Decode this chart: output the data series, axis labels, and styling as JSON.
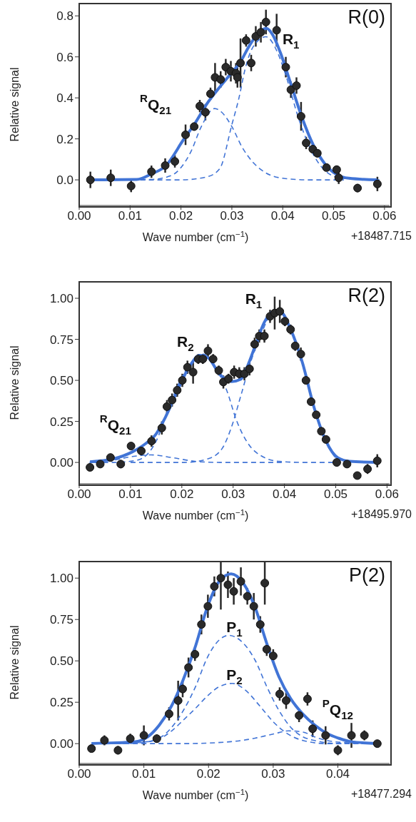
{
  "chart_data": [
    {
      "type": "scatter",
      "xlabel": "Wave number (cm$^{−1}$)",
      "ylabel": "Relative signal",
      "xlim": [
        0,
        0.061
      ],
      "ylim": [
        -0.125,
        0.86
      ],
      "xticks": [
        {
          "value": 0,
          "label": "0.00"
        },
        {
          "value": 0.01,
          "label": "0.01"
        },
        {
          "value": 0.02,
          "label": "0.02"
        },
        {
          "value": 0.03,
          "label": "0.03"
        },
        {
          "value": 0.04,
          "label": "0.04"
        },
        {
          "value": 0.05,
          "label": "0.05"
        },
        {
          "value": 0.06,
          "label": "0.06"
        }
      ],
      "yticks": [
        {
          "value": 0,
          "label": "0.0"
        },
        {
          "value": 0.2,
          "label": "0.2"
        },
        {
          "value": 0.4,
          "label": "0.4"
        },
        {
          "value": 0.6,
          "label": "0.6"
        },
        {
          "value": 0.8,
          "label": "0.8"
        }
      ],
      "annotations": [
        "R(0)",
        "+18487.715",
        "R$_{1}$",
        "$^{R}$Q$_{21}$"
      ],
      "series": [
        {
          "marker": "circle",
          "color": "#2a2a2a",
          "x": [
            0.0022,
            0.0062,
            0.0102,
            0.0142,
            0.0169,
            0.0188,
            0.0209,
            0.0226,
            0.0237,
            0.0248,
            0.0258,
            0.0267,
            0.0278,
            0.0288,
            0.0298,
            0.0308,
            0.0311,
            0.0317,
            0.0328,
            0.0338,
            0.0347,
            0.0357,
            0.0367,
            0.0388,
            0.0406,
            0.0416,
            0.0427,
            0.0436,
            0.0446,
            0.0459,
            0.0468,
            0.0486,
            0.0506,
            0.051,
            0.0547,
            0.0586
          ],
          "values": [
            0.0,
            0.01,
            -0.03,
            0.04,
            0.07,
            0.09,
            0.22,
            0.26,
            0.36,
            0.33,
            0.42,
            0.5,
            0.49,
            0.55,
            0.53,
            0.52,
            0.5,
            0.57,
            0.68,
            0.57,
            0.7,
            0.72,
            0.77,
            0.73,
            0.55,
            0.44,
            0.46,
            0.31,
            0.18,
            0.15,
            0.13,
            0.06,
            0.05,
            0.01,
            -0.04,
            -0.02
          ],
          "errors": [
            0.04,
            0.04,
            0.03,
            0.03,
            0.035,
            0.03,
            0.05,
            0.02,
            0.03,
            0.04,
            0.03,
            0.07,
            0.04,
            0.04,
            0.05,
            0.05,
            0.05,
            0.12,
            0.03,
            0.04,
            0.05,
            0.05,
            0.06,
            0.08,
            0.05,
            0.04,
            0.04,
            0.07,
            0.03,
            0.02,
            0.02,
            0.015,
            0.02,
            0.03,
            0.02,
            0.035
          ]
        },
        {
          "type": "line",
          "line_style": "solid",
          "color": "#4174d6",
          "x": [
            0.002,
            0.0113,
            0.0142,
            0.0169,
            0.0206,
            0.0226,
            0.0252,
            0.0275,
            0.0298,
            0.0317,
            0.0335,
            0.0358,
            0.0368,
            0.0381,
            0.0395,
            0.0414,
            0.0437,
            0.046,
            0.0483,
            0.0506,
            0.053,
            0.0585
          ],
          "values": [
            0,
            0.002,
            0.029,
            0.066,
            0.2,
            0.27,
            0.375,
            0.449,
            0.518,
            0.576,
            0.657,
            0.729,
            0.739,
            0.704,
            0.623,
            0.483,
            0.31,
            0.17,
            0.078,
            0.026,
            0.008,
            0
          ]
        },
        {
          "type": "line",
          "line_style": "dashed",
          "color": "#4174d6",
          "x": [
            0.002,
            0.014,
            0.018,
            0.02,
            0.022,
            0.024,
            0.0266,
            0.028,
            0.03,
            0.032,
            0.034,
            0.036,
            0.04,
            0.045,
            0.052
          ],
          "values": [
            0,
            0.002,
            0.02,
            0.06,
            0.14,
            0.26,
            0.348,
            0.33,
            0.26,
            0.16,
            0.09,
            0.045,
            0.008,
            0,
            0
          ]
        },
        {
          "type": "line",
          "line_style": "dashed",
          "color": "#4174d6",
          "x": [
            0.012,
            0.02,
            0.025,
            0.0276,
            0.03,
            0.0314,
            0.0326,
            0.0342,
            0.0367,
            0.039,
            0.0405,
            0.0433,
            0.046,
            0.0484,
            0.0516,
            0.059
          ],
          "values": [
            0,
            0,
            0.014,
            0.054,
            0.269,
            0.4,
            0.54,
            0.65,
            0.698,
            0.62,
            0.518,
            0.286,
            0.124,
            0.043,
            0.008,
            0
          ]
        }
      ]
    },
    {
      "type": "scatter",
      "xlabel": "Wave number (cm$^{−1}$)",
      "ylabel": "Relative signal",
      "xlim": [
        0,
        0.0605
      ],
      "ylim": [
        -0.13,
        1.1
      ],
      "xticks": [
        {
          "value": 0,
          "label": "0.00"
        },
        {
          "value": 0.01,
          "label": "0.01"
        },
        {
          "value": 0.02,
          "label": "0.02"
        },
        {
          "value": 0.03,
          "label": "0.03"
        },
        {
          "value": 0.04,
          "label": "0.04"
        },
        {
          "value": 0.05,
          "label": "0.05"
        },
        {
          "value": 0.06,
          "label": "0.06"
        }
      ],
      "yticks": [
        {
          "value": 0,
          "label": "0.00"
        },
        {
          "value": 0.25,
          "label": "0.25"
        },
        {
          "value": 0.5,
          "label": "0.50"
        },
        {
          "value": 0.75,
          "label": "0.75"
        },
        {
          "value": 1,
          "label": "1.00"
        }
      ],
      "annotations": [
        "R(2)",
        "+18495.970",
        "R$_{1}$",
        "R$_{2}$",
        "$^{R}$Q$_{21}$"
      ],
      "series": [
        {
          "marker": "circle",
          "color": "#2a2a2a",
          "x": [
            0.0021,
            0.0041,
            0.0061,
            0.0081,
            0.0101,
            0.0121,
            0.0141,
            0.0161,
            0.0171,
            0.0181,
            0.0191,
            0.0201,
            0.0211,
            0.0222,
            0.0232,
            0.0241,
            0.0251,
            0.0261,
            0.0272,
            0.0281,
            0.0291,
            0.0302,
            0.0312,
            0.0322,
            0.0332,
            0.0342,
            0.0351,
            0.0361,
            0.0372,
            0.0381,
            0.0391,
            0.0401,
            0.0412,
            0.0421,
            0.0432,
            0.0442,
            0.0452,
            0.0462,
            0.0472,
            0.0481,
            0.0502,
            0.0522,
            0.0542,
            0.0562,
            0.0581
          ],
          "values": [
            -0.03,
            -0.01,
            0.03,
            -0.01,
            0.1,
            0.07,
            0.13,
            0.21,
            0.34,
            0.38,
            0.44,
            0.5,
            0.58,
            0.55,
            0.63,
            0.63,
            0.68,
            0.63,
            0.56,
            0.49,
            0.51,
            0.55,
            0.54,
            0.54,
            0.57,
            0.72,
            0.77,
            0.77,
            0.89,
            0.91,
            0.92,
            0.86,
            0.81,
            0.71,
            0.66,
            0.5,
            0.37,
            0.29,
            0.19,
            0.14,
            0.0,
            -0.01,
            -0.08,
            -0.04,
            0.01
          ],
          "errors": [
            0.02,
            0.015,
            0.015,
            0.025,
            0.02,
            0.025,
            0.035,
            0.04,
            0.04,
            0.04,
            0.04,
            0.04,
            0.04,
            0.07,
            0.03,
            0.03,
            0.04,
            0.03,
            0.03,
            0.04,
            0.03,
            0.04,
            0.04,
            0.04,
            0.04,
            0.04,
            0.04,
            0.04,
            0.04,
            0.1,
            0.07,
            0.03,
            0.03,
            0.03,
            0.04,
            0.02,
            0.02,
            0.02,
            0.02,
            0.02,
            0.02,
            0.02,
            0.02,
            0.03,
            0.04
          ]
        },
        {
          "type": "line",
          "line_style": "solid",
          "color": "#4174d6",
          "x": [
            0.0021,
            0.0067,
            0.0104,
            0.0127,
            0.015,
            0.0168,
            0.0191,
            0.0214,
            0.0235,
            0.0251,
            0.0274,
            0.0297,
            0.0315,
            0.0329,
            0.0343,
            0.0361,
            0.038,
            0.0394,
            0.0412,
            0.0435,
            0.0458,
            0.0481,
            0.0504,
            0.0527,
            0.0582
          ],
          "values": [
            0.004,
            0.022,
            0.065,
            0.109,
            0.174,
            0.275,
            0.435,
            0.58,
            0.652,
            0.638,
            0.536,
            0.493,
            0.507,
            0.594,
            0.71,
            0.855,
            0.92,
            0.913,
            0.812,
            0.609,
            0.333,
            0.13,
            0.029,
            0.007,
            0
          ]
        },
        {
          "type": "line",
          "line_style": "dashed",
          "color": "#4174d6",
          "x": [
            0.002,
            0.0067,
            0.0104,
            0.014,
            0.0182,
            0.0228,
            0.0274,
            0.04
          ],
          "values": [
            0,
            0.014,
            0.036,
            0.046,
            0.029,
            0.006,
            0,
            0
          ]
        },
        {
          "type": "line",
          "line_style": "dashed",
          "color": "#4174d6",
          "x": [
            0.003,
            0.0067,
            0.0113,
            0.015,
            0.0173,
            0.0196,
            0.0219,
            0.0242,
            0.0265,
            0.0288,
            0.0306,
            0.0329,
            0.0357,
            0.0389,
            0.0435,
            0.05
          ],
          "values": [
            0,
            0,
            0.014,
            0.13,
            0.319,
            0.493,
            0.609,
            0.66,
            0.58,
            0.435,
            0.261,
            0.116,
            0.036,
            0.007,
            0,
            0
          ]
        },
        {
          "type": "line",
          "line_style": "dashed",
          "color": "#4174d6",
          "x": [
            0.01,
            0.0205,
            0.0251,
            0.0279,
            0.0297,
            0.0315,
            0.0334,
            0.0352,
            0.0382,
            0.0412,
            0.0435,
            0.0458,
            0.0481,
            0.0504,
            0.055,
            0.0582
          ],
          "values": [
            0,
            0,
            0.022,
            0.087,
            0.217,
            0.406,
            0.609,
            0.76,
            0.928,
            0.812,
            0.609,
            0.333,
            0.13,
            0.022,
            0,
            0
          ]
        }
      ]
    },
    {
      "type": "scatter",
      "xlabel": "Wave number (cm$^{−1}$)",
      "ylabel": "Relative signal",
      "xlim": [
        0,
        0.048
      ],
      "ylim": [
        -0.12,
        1.1
      ],
      "xticks": [
        {
          "value": 0,
          "label": "0.00"
        },
        {
          "value": 0.01,
          "label": "0.01"
        },
        {
          "value": 0.02,
          "label": "0.02"
        },
        {
          "value": 0.03,
          "label": "0.03"
        },
        {
          "value": 0.04,
          "label": "0.04"
        }
      ],
      "yticks": [
        {
          "value": 0,
          "label": "0.00"
        },
        {
          "value": 0.25,
          "label": "0.25"
        },
        {
          "value": 0.5,
          "label": "0.50"
        },
        {
          "value": 0.75,
          "label": "0.75"
        },
        {
          "value": 1,
          "label": "1.00"
        }
      ],
      "annotations": [
        "P(2)",
        "+18477.294",
        "P$_{1}$",
        "P$_{2}$",
        "$^{P}$Q$_{12}$"
      ],
      "series": [
        {
          "marker": "circle",
          "color": "#2a2a2a",
          "x": [
            0.0019,
            0.0039,
            0.006,
            0.0079,
            0.01,
            0.012,
            0.0139,
            0.0153,
            0.016,
            0.0169,
            0.0179,
            0.0189,
            0.0199,
            0.0209,
            0.0219,
            0.023,
            0.0239,
            0.025,
            0.026,
            0.027,
            0.028,
            0.0287,
            0.029,
            0.03,
            0.031,
            0.032,
            0.034,
            0.0353,
            0.0361,
            0.0381,
            0.04,
            0.0421,
            0.0441,
            0.0461
          ],
          "values": [
            -0.03,
            0.02,
            -0.04,
            0.03,
            0.05,
            0.03,
            0.18,
            0.26,
            0.33,
            0.46,
            0.54,
            0.72,
            0.83,
            0.95,
            1.0,
            0.96,
            0.92,
            0.98,
            0.89,
            0.83,
            0.72,
            0.97,
            0.57,
            0.53,
            0.3,
            0.26,
            0.17,
            0.27,
            0.09,
            0.05,
            -0.04,
            0.05,
            0.05,
            0.0
          ],
          "errors": [
            0.015,
            0.03,
            0.025,
            0.03,
            0.06,
            0.025,
            0.04,
            0.12,
            0.05,
            0.06,
            0.04,
            0.06,
            0.07,
            0.06,
            [
              0.81,
              1.1
            ],
            0.08,
            0.08,
            0.085,
            0.05,
            0.08,
            0.05,
            [
              0.84,
              1.1
            ],
            0.04,
            0.04,
            0.04,
            0.05,
            0.04,
            0.04,
            0.05,
            0.055,
            0.03,
            0.075,
            0.03,
            0.01
          ]
        },
        {
          "type": "line",
          "line_style": "solid",
          "color": "#4174d6",
          "x": [
            0.0019,
            0.0087,
            0.0106,
            0.0124,
            0.0143,
            0.0161,
            0.018,
            0.0198,
            0.0217,
            0.0235,
            0.0254,
            0.0272,
            0.029,
            0.0309,
            0.0327,
            0.0346,
            0.0364,
            0.0383,
            0.0401,
            0.042,
            0.046
          ],
          "values": [
            0.001,
            0.012,
            0.041,
            0.113,
            0.229,
            0.388,
            0.591,
            0.823,
            0.983,
            1.026,
            0.968,
            0.823,
            0.606,
            0.403,
            0.272,
            0.178,
            0.113,
            0.062,
            0.033,
            0.012,
            0.001
          ]
        },
        {
          "type": "line",
          "line_style": "dashed",
          "color": "#4174d6",
          "x": [
            0.0019,
            0.0051,
            0.0106,
            0.0132,
            0.0161,
            0.018,
            0.0198,
            0.0217,
            0.0231,
            0.0254,
            0.0272,
            0.029,
            0.0309,
            0.0327,
            0.0346,
            0.0364,
            0.0401,
            0.046
          ],
          "values": [
            0,
            0,
            0.012,
            0.055,
            0.2,
            0.345,
            0.519,
            0.628,
            0.654,
            0.606,
            0.504,
            0.345,
            0.2,
            0.099,
            0.041,
            0.019,
            0,
            0
          ]
        },
        {
          "type": "line",
          "line_style": "dashed",
          "color": "#4174d6",
          "x": [
            0.004,
            0.0069,
            0.0117,
            0.0143,
            0.0161,
            0.018,
            0.0198,
            0.0217,
            0.0237,
            0.0257,
            0.0279,
            0.0301,
            0.0324,
            0.0346,
            0.0383,
            0.044
          ],
          "values": [
            0,
            0,
            0.019,
            0.077,
            0.142,
            0.214,
            0.287,
            0.345,
            0.364,
            0.323,
            0.229,
            0.128,
            0.055,
            0.019,
            0,
            0
          ]
        },
        {
          "type": "line",
          "line_style": "dashed",
          "color": "#4174d6",
          "x": [
            0.003,
            0.0161,
            0.0235,
            0.0272,
            0.0301,
            0.0324,
            0.0346,
            0.0364,
            0.0383,
            0.042,
            0.046
          ],
          "values": [
            0,
            0,
            0.012,
            0.033,
            0.059,
            0.077,
            0.07,
            0.041,
            0.019,
            0.004,
            0
          ]
        }
      ]
    }
  ]
}
